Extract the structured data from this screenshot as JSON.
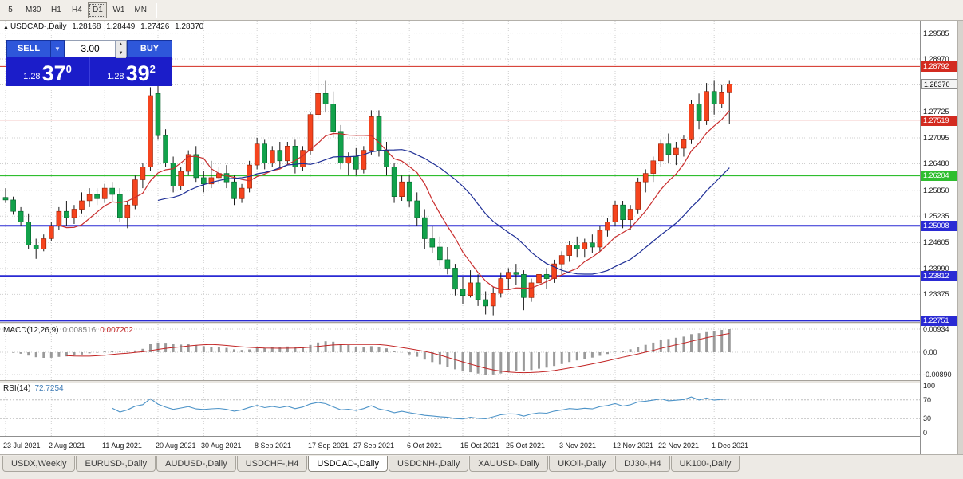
{
  "toolbar": {
    "periods": [
      "5",
      "M30",
      "H1",
      "H4",
      "D1",
      "W1",
      "MN"
    ],
    "active": "D1"
  },
  "chart_header": {
    "marker": "▲",
    "title": "USDCAD-,Daily",
    "open": "1.28168",
    "high": "1.28449",
    "low": "1.27426",
    "close": "1.28370"
  },
  "trade_panel": {
    "sell_label": "SELL",
    "buy_label": "BUY",
    "volume": "3.00",
    "sell_price": {
      "main": "1.28",
      "big": "37",
      "sup": "0"
    },
    "buy_price": {
      "main": "1.28",
      "big": "39",
      "sup": "2"
    }
  },
  "chart_data": {
    "type": "candlestick",
    "symbol": "USDCAD-",
    "timeframe": "Daily",
    "y_range": [
      1.2272,
      1.2988
    ],
    "y_gridlines": [
      "1.29585",
      "1.28970",
      "1.28355",
      "1.27725",
      "1.27095",
      "1.26480",
      "1.25850",
      "1.25235",
      "1.24605",
      "1.23990",
      "1.23375",
      "1.22760"
    ],
    "current_price": "1.28370",
    "levels": [
      {
        "label": "1.28792",
        "price": 1.28792,
        "color": "#d32b20",
        "width": 1
      },
      {
        "label": "1.27519",
        "price": 1.27519,
        "color": "#d32b20",
        "width": 1
      },
      {
        "label": "1.26204",
        "price": 1.26204,
        "color": "#2fbe2f",
        "width": 2
      },
      {
        "label": "1.25008",
        "price": 1.25008,
        "color": "#2a2ad4",
        "width": 2
      },
      {
        "label": "1.23812",
        "price": 1.23812,
        "color": "#2a2ad4",
        "width": 2
      },
      {
        "label": "1.22751",
        "price": 1.22751,
        "color": "#2a2ad4",
        "width": 2
      }
    ],
    "x_tick_labels": [
      "23 Jul 2021",
      "2 Aug 2021",
      "11 Aug 2021",
      "20 Aug 2021",
      "30 Aug 2021",
      "8 Sep 2021",
      "17 Sep 2021",
      "27 Sep 2021",
      "6 Oct 2021",
      "15 Oct 2021",
      "25 Oct 2021",
      "3 Nov 2021",
      "12 Nov 2021",
      "22 Nov 2021",
      "1 Dec 2021"
    ],
    "x_tick_indices": [
      0,
      6,
      13,
      20,
      26,
      33,
      40,
      46,
      53,
      60,
      66,
      73,
      80,
      86,
      93
    ],
    "candles": [
      [
        1.2568,
        1.259,
        1.2555,
        1.2562
      ],
      [
        1.2562,
        1.257,
        1.2527,
        1.2535
      ],
      [
        1.2535,
        1.2545,
        1.25,
        1.251
      ],
      [
        1.251,
        1.253,
        1.2445,
        1.2455
      ],
      [
        1.2455,
        1.247,
        1.2422,
        1.2445
      ],
      [
        1.2445,
        1.248,
        1.244,
        1.247
      ],
      [
        1.247,
        1.251,
        1.2465,
        1.25
      ],
      [
        1.25,
        1.2545,
        1.249,
        1.2535
      ],
      [
        1.2535,
        1.256,
        1.25,
        1.252
      ],
      [
        1.252,
        1.255,
        1.2505,
        1.254
      ],
      [
        1.254,
        1.258,
        1.253,
        1.256
      ],
      [
        1.256,
        1.259,
        1.2545,
        1.2575
      ],
      [
        1.2575,
        1.259,
        1.255,
        1.2565
      ],
      [
        1.2565,
        1.26,
        1.2555,
        1.259
      ],
      [
        1.259,
        1.2605,
        1.256,
        1.2575
      ],
      [
        1.2575,
        1.259,
        1.251,
        1.252
      ],
      [
        1.252,
        1.256,
        1.2495,
        1.255
      ],
      [
        1.255,
        1.262,
        1.254,
        1.261
      ],
      [
        1.261,
        1.265,
        1.259,
        1.264
      ],
      [
        1.264,
        1.283,
        1.263,
        1.281
      ],
      [
        1.2815,
        1.2842,
        1.2705,
        1.2715
      ],
      [
        1.2715,
        1.273,
        1.264,
        1.265
      ],
      [
        1.265,
        1.2665,
        1.258,
        1.2595
      ],
      [
        1.2595,
        1.264,
        1.2585,
        1.263
      ],
      [
        1.263,
        1.268,
        1.262,
        1.267
      ],
      [
        1.267,
        1.269,
        1.2605,
        1.2615
      ],
      [
        1.2615,
        1.263,
        1.258,
        1.26
      ],
      [
        1.26,
        1.2655,
        1.259,
        1.2615
      ],
      [
        1.2615,
        1.264,
        1.26,
        1.2625
      ],
      [
        1.2625,
        1.2645,
        1.259,
        1.2605
      ],
      [
        1.2605,
        1.262,
        1.255,
        1.2565
      ],
      [
        1.2565,
        1.26,
        1.2555,
        1.259
      ],
      [
        1.259,
        1.2655,
        1.258,
        1.2645
      ],
      [
        1.2645,
        1.271,
        1.2635,
        1.2695
      ],
      [
        1.2695,
        1.2705,
        1.2635,
        1.265
      ],
      [
        1.265,
        1.269,
        1.264,
        1.268
      ],
      [
        1.268,
        1.27,
        1.264,
        1.2655
      ],
      [
        1.2655,
        1.27,
        1.2645,
        1.269
      ],
      [
        1.269,
        1.2705,
        1.2625,
        1.264
      ],
      [
        1.264,
        1.269,
        1.263,
        1.268
      ],
      [
        1.268,
        1.277,
        1.267,
        1.2765
      ],
      [
        1.2765,
        1.2896,
        1.2755,
        1.2815
      ],
      [
        1.2815,
        1.2845,
        1.277,
        1.279
      ],
      [
        1.279,
        1.282,
        1.271,
        1.2725
      ],
      [
        1.2725,
        1.274,
        1.2635,
        1.265
      ],
      [
        1.265,
        1.2675,
        1.262,
        1.2665
      ],
      [
        1.2665,
        1.2685,
        1.262,
        1.2635
      ],
      [
        1.2635,
        1.269,
        1.2625,
        1.268
      ],
      [
        1.268,
        1.2775,
        1.267,
        1.276
      ],
      [
        1.276,
        1.2775,
        1.2665,
        1.268
      ],
      [
        1.268,
        1.27,
        1.262,
        1.264
      ],
      [
        1.264,
        1.265,
        1.2555,
        1.257
      ],
      [
        1.257,
        1.262,
        1.256,
        1.2605
      ],
      [
        1.2605,
        1.262,
        1.2545,
        1.256
      ],
      [
        1.256,
        1.258,
        1.25,
        1.252
      ],
      [
        1.252,
        1.254,
        1.2445,
        1.247
      ],
      [
        1.247,
        1.25,
        1.2435,
        1.245
      ],
      [
        1.245,
        1.2475,
        1.2405,
        1.242
      ],
      [
        1.242,
        1.245,
        1.2385,
        1.24
      ],
      [
        1.24,
        1.241,
        1.2335,
        1.235
      ],
      [
        1.235,
        1.238,
        1.2315,
        1.2335
      ],
      [
        1.2335,
        1.2395,
        1.233,
        1.2365
      ],
      [
        1.2365,
        1.2385,
        1.231,
        1.2325
      ],
      [
        1.2325,
        1.2345,
        1.229,
        1.231
      ],
      [
        1.231,
        1.2355,
        1.2288,
        1.234
      ],
      [
        1.234,
        1.239,
        1.233,
        1.2375
      ],
      [
        1.2375,
        1.24,
        1.235,
        1.239
      ],
      [
        1.239,
        1.241,
        1.236,
        1.2385
      ],
      [
        1.2385,
        1.2395,
        1.23,
        1.233
      ],
      [
        1.233,
        1.2375,
        1.232,
        1.2365
      ],
      [
        1.2365,
        1.2395,
        1.233,
        1.2385
      ],
      [
        1.2385,
        1.24,
        1.235,
        1.2375
      ],
      [
        1.2375,
        1.242,
        1.2365,
        1.241
      ],
      [
        1.241,
        1.244,
        1.2385,
        1.243
      ],
      [
        1.243,
        1.2465,
        1.2415,
        1.2455
      ],
      [
        1.2455,
        1.2475,
        1.2425,
        1.2445
      ],
      [
        1.2445,
        1.247,
        1.2425,
        1.246
      ],
      [
        1.246,
        1.248,
        1.2435,
        1.245
      ],
      [
        1.245,
        1.25,
        1.244,
        1.249
      ],
      [
        1.249,
        1.252,
        1.2475,
        1.251
      ],
      [
        1.251,
        1.256,
        1.25,
        1.255
      ],
      [
        1.255,
        1.256,
        1.2495,
        1.2515
      ],
      [
        1.2515,
        1.255,
        1.249,
        1.254
      ],
      [
        1.254,
        1.2615,
        1.253,
        1.2605
      ],
      [
        1.2605,
        1.2635,
        1.258,
        1.2625
      ],
      [
        1.2625,
        1.2665,
        1.2605,
        1.2655
      ],
      [
        1.2655,
        1.2705,
        1.264,
        1.2695
      ],
      [
        1.2695,
        1.272,
        1.265,
        1.267
      ],
      [
        1.267,
        1.27,
        1.2645,
        1.2685
      ],
      [
        1.2685,
        1.2715,
        1.2665,
        1.2705
      ],
      [
        1.2705,
        1.28,
        1.2695,
        1.279
      ],
      [
        1.279,
        1.2815,
        1.273,
        1.275
      ],
      [
        1.275,
        1.284,
        1.274,
        1.282
      ],
      [
        1.282,
        1.2845,
        1.2765,
        1.279
      ],
      [
        1.279,
        1.2835,
        1.278,
        1.2817
      ],
      [
        1.28168,
        1.28449,
        1.27426,
        1.2837
      ]
    ],
    "indicators": {
      "macd": {
        "label": "MACD(12,26,9)",
        "value_main": "0.008516",
        "value_signal": "0.007202",
        "params": [
          12,
          26,
          9
        ],
        "scale": [
          "0.00934",
          "0.00",
          "-0.00890"
        ]
      },
      "rsi": {
        "label": "RSI(14)",
        "value": "72.7254",
        "period": 14,
        "levels": [
          70,
          30
        ],
        "scale": [
          "100",
          "70",
          "30",
          "0"
        ]
      }
    }
  },
  "tabs": {
    "items": [
      "USDX,Weekly",
      "EURUSD-,Daily",
      "AUDUSD-,Daily",
      "USDCHF-,H4",
      "USDCAD-,Daily",
      "USDCNH-,Daily",
      "XAUUSD-,Daily",
      "UKOil-,Daily",
      "DJ30-,H4",
      "UK100-,Daily"
    ],
    "active": "USDCAD-,Daily"
  },
  "colors": {
    "bull": "#f5441e",
    "bull_edge": "#8f1d03",
    "bear": "#12a24b",
    "bear_edge": "#04602a",
    "wick": "#1a1a1a",
    "ma_fast": "#c92d2d",
    "ma_slow": "#1f2f96",
    "grid": "#cfcfcf",
    "macd_hist": "#9a9a9a",
    "macd_signal": "#c22525",
    "rsi_line": "#4e94c8"
  }
}
